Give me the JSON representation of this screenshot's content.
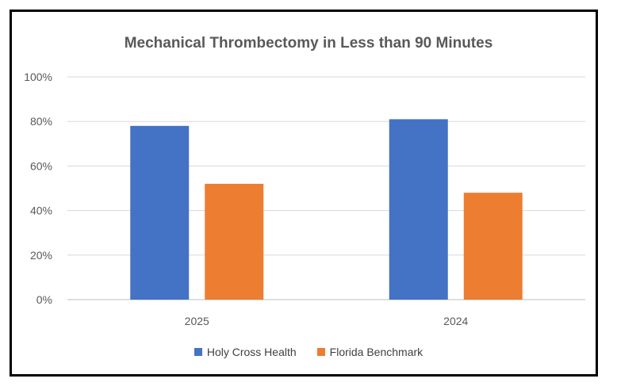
{
  "chart_data": {
    "type": "bar",
    "title": "Mechanical Thrombectomy in Less than 90 Minutes",
    "categories": [
      "2025",
      "2024"
    ],
    "series": [
      {
        "name": "Holy Cross Health",
        "values": [
          78,
          81
        ],
        "color": "#4472C4"
      },
      {
        "name": "Florida Benchmark",
        "values": [
          52,
          48
        ],
        "color": "#ED7D31"
      }
    ],
    "yticks": [
      "0%",
      "20%",
      "40%",
      "60%",
      "80%",
      "100%"
    ],
    "ylim": [
      0,
      100
    ],
    "grid": true,
    "legend": "bottom"
  }
}
